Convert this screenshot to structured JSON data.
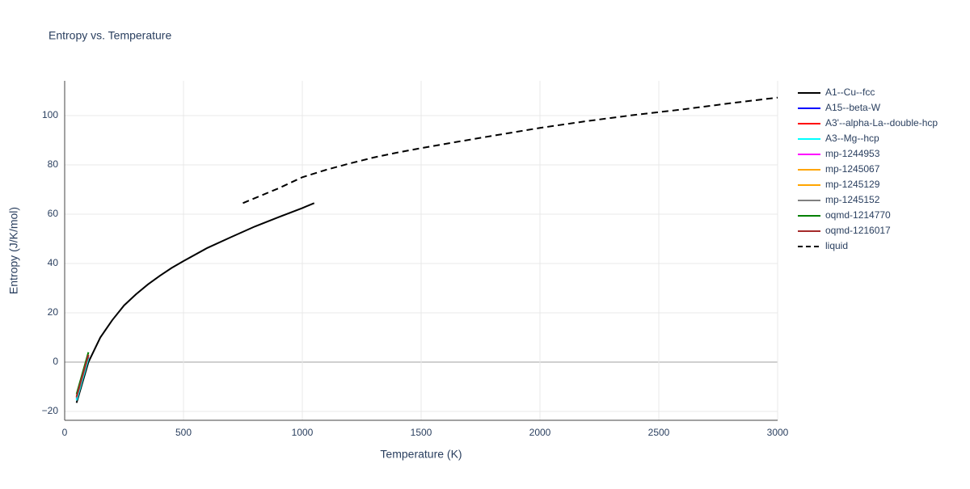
{
  "chart_data": {
    "type": "line",
    "title": "Entropy vs. Temperature",
    "x_label": "Temperature (K)",
    "y_label": "Entropy (J/K/mol)",
    "xlim": [
      0,
      3000
    ],
    "ylim": [
      -23.6,
      114.1
    ],
    "xticks": [
      0,
      500,
      1000,
      1500,
      2000,
      2500,
      3000
    ],
    "yticks": [
      {
        "value": -20,
        "label": "−20"
      },
      0,
      20,
      40,
      60,
      80,
      100
    ],
    "grid": true,
    "legend": "right",
    "series": [
      {
        "name": "A1--Cu--fcc",
        "color": "#000000",
        "x": [
          50,
          100,
          150,
          200,
          250,
          300,
          350,
          400,
          450,
          500,
          600,
          700,
          800,
          900,
          1000,
          1050
        ],
        "values": [
          -16.5,
          0,
          10,
          17,
          23,
          27.5,
          31.5,
          35,
          38.2,
          41,
          46.3,
          50.7,
          55,
          58.8,
          62.5,
          64.5
        ]
      },
      {
        "name": "A15--beta-W",
        "color": "#0000ff",
        "x": [
          50,
          100
        ],
        "values": [
          -15,
          2
        ]
      },
      {
        "name": "A3'--alpha-La--double-hcp",
        "color": "#ff0000",
        "x": [
          50,
          100
        ],
        "values": [
          -14.5,
          2.5
        ]
      },
      {
        "name": "A3--Mg--hcp",
        "color": "#00ffff",
        "x": [
          50,
          100
        ],
        "values": [
          -15.5,
          1.5
        ]
      },
      {
        "name": "mp-1244953",
        "color": "#ff00ff",
        "x": [
          50,
          100
        ],
        "values": [
          -14,
          3
        ]
      },
      {
        "name": "mp-1245067",
        "color": "#ffa500",
        "x": [
          50,
          100
        ],
        "values": [
          -14,
          3
        ]
      },
      {
        "name": "mp-1245129",
        "color": "#ffa500",
        "x": [
          50,
          100
        ],
        "values": [
          -14,
          3
        ]
      },
      {
        "name": "mp-1245152",
        "color": "#808080",
        "x": [
          50,
          100
        ],
        "values": [
          -14.5,
          2.5
        ]
      },
      {
        "name": "oqmd-1214770",
        "color": "#008000",
        "x": [
          50,
          100
        ],
        "values": [
          -13,
          4
        ]
      },
      {
        "name": "oqmd-1216017",
        "color": "#a52a2a",
        "x": [
          50,
          100
        ],
        "values": [
          -14,
          3
        ]
      },
      {
        "name": "liquid",
        "color": "#000000",
        "dash": true,
        "x": [
          750,
          800,
          900,
          1000,
          1100,
          1200,
          1300,
          1400,
          1500,
          1600,
          1800,
          2000,
          2200,
          2400,
          2600,
          2800,
          3000
        ],
        "values": [
          64.5,
          66.5,
          70.5,
          75,
          78,
          80.6,
          83,
          85,
          86.8,
          88.5,
          91.8,
          95,
          97.8,
          100.3,
          102.5,
          105,
          107.3
        ]
      }
    ]
  }
}
